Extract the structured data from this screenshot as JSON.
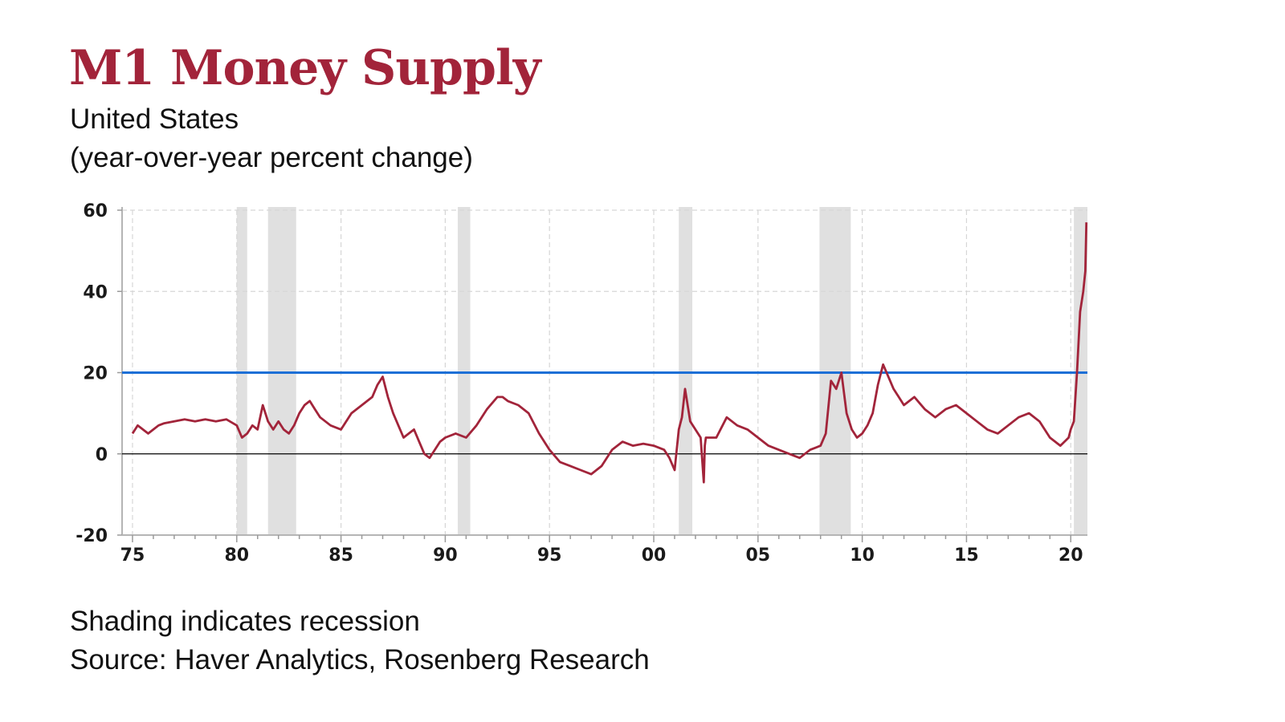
{
  "title": "M1 Money Supply",
  "subtitle_lines": [
    "United States",
    "(year-over-year percent change)"
  ],
  "notes": [
    "Shading indicates recession",
    "Source: Haver Analytics, Rosenberg Research"
  ],
  "colors": {
    "title": "#a2243a",
    "series": "#a2243a",
    "reference_line": "#1d6fd6",
    "recession_shading": "#e0e0e0",
    "grid": "#d6d6d6",
    "zero_line": "#000000"
  },
  "chart_data": {
    "type": "line",
    "title": "M1 Money Supply",
    "subtitle": "United States (year-over-year percent change)",
    "xlabel": "",
    "ylabel": "",
    "xlim": [
      1974.5,
      2020.8
    ],
    "ylim": [
      -20,
      60
    ],
    "x_ticks": [
      1975,
      1980,
      1985,
      1990,
      1995,
      2000,
      2005,
      2010,
      2015,
      2020
    ],
    "x_tick_labels": [
      "75",
      "80",
      "85",
      "90",
      "95",
      "00",
      "05",
      "10",
      "15",
      "20"
    ],
    "y_ticks": [
      -20,
      0,
      20,
      40,
      60
    ],
    "y_tick_labels": [
      "-20",
      "0",
      "20",
      "40",
      "60"
    ],
    "grid": true,
    "reference_line": {
      "y": 20
    },
    "zero_line": {
      "y": 0
    },
    "recessions": [
      [
        1980.0,
        1980.5
      ],
      [
        1981.5,
        1982.85
      ],
      [
        1990.6,
        1991.2
      ],
      [
        2001.2,
        2001.85
      ],
      [
        2007.95,
        2009.45
      ],
      [
        2020.15,
        2020.8
      ]
    ],
    "series": [
      {
        "name": "M1 Money Supply, y/y % change",
        "x": [
          1975.0,
          1975.25,
          1975.5,
          1975.75,
          1976.0,
          1976.25,
          1976.5,
          1977.0,
          1977.5,
          1978.0,
          1978.5,
          1979.0,
          1979.5,
          1980.0,
          1980.25,
          1980.5,
          1980.75,
          1981.0,
          1981.25,
          1981.5,
          1981.75,
          1982.0,
          1982.25,
          1982.5,
          1982.75,
          1983.0,
          1983.25,
          1983.5,
          1983.75,
          1984.0,
          1984.5,
          1985.0,
          1985.5,
          1986.0,
          1986.5,
          1986.75,
          1987.0,
          1987.25,
          1987.5,
          1987.75,
          1988.0,
          1988.25,
          1988.5,
          1988.75,
          1989.0,
          1989.25,
          1989.5,
          1989.75,
          1990.0,
          1990.5,
          1991.0,
          1991.5,
          1992.0,
          1992.5,
          1992.75,
          1993.0,
          1993.5,
          1994.0,
          1994.5,
          1995.0,
          1995.5,
          1996.0,
          1996.5,
          1997.0,
          1997.5,
          1998.0,
          1998.5,
          1999.0,
          1999.5,
          2000.0,
          2000.5,
          2000.75,
          2001.0,
          2001.2,
          2001.35,
          2001.5,
          2001.75,
          2002.0,
          2002.25,
          2002.4,
          2002.45,
          2002.5,
          2003.0,
          2003.5,
          2004.0,
          2004.5,
          2005.0,
          2005.5,
          2006.0,
          2006.5,
          2007.0,
          2007.5,
          2008.0,
          2008.25,
          2008.5,
          2008.75,
          2009.0,
          2009.25,
          2009.5,
          2009.75,
          2010.0,
          2010.25,
          2010.5,
          2010.75,
          2011.0,
          2011.25,
          2011.5,
          2011.75,
          2012.0,
          2012.5,
          2013.0,
          2013.5,
          2014.0,
          2014.5,
          2015.0,
          2015.5,
          2016.0,
          2016.5,
          2017.0,
          2017.5,
          2018.0,
          2018.5,
          2019.0,
          2019.5,
          2019.9,
          2020.0,
          2020.15,
          2020.3,
          2020.45,
          2020.6,
          2020.7,
          2020.75
        ],
        "values": [
          5,
          7,
          6,
          5,
          6,
          7,
          7.5,
          8,
          8.5,
          8,
          8.5,
          8,
          8.5,
          7,
          4,
          5,
          7,
          6,
          12,
          8,
          6,
          8,
          6,
          5,
          7,
          10,
          12,
          13,
          11,
          9,
          7,
          6,
          10,
          12,
          14,
          17,
          19,
          14,
          10,
          7,
          4,
          5,
          6,
          3,
          0,
          -1,
          1,
          3,
          4,
          5,
          4,
          7,
          11,
          14,
          14,
          13,
          12,
          10,
          5,
          1,
          -2,
          -3,
          -4,
          -5,
          -3,
          1,
          3,
          2,
          2.5,
          2,
          1,
          -1,
          -4,
          6,
          9,
          16,
          8,
          6,
          4,
          -7,
          2,
          4,
          4,
          9,
          7,
          6,
          4,
          2,
          1,
          0,
          -1,
          1,
          2,
          5,
          18,
          16,
          20,
          10,
          6,
          4,
          5,
          7,
          10,
          17,
          22,
          19,
          16,
          14,
          12,
          14,
          11,
          9,
          11,
          12,
          10,
          8,
          6,
          5,
          7,
          9,
          10,
          8,
          4,
          2,
          4,
          6,
          8,
          20,
          35,
          40,
          45,
          57
        ]
      }
    ]
  }
}
